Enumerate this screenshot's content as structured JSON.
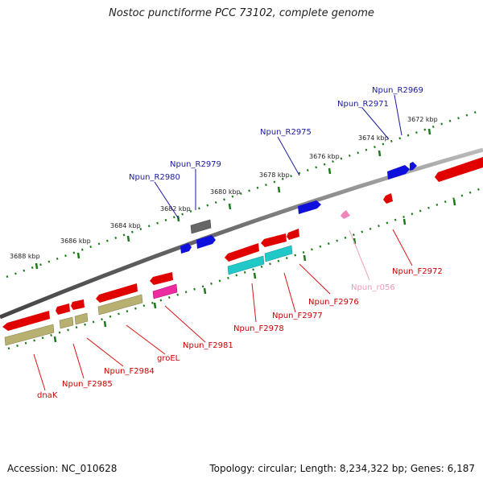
{
  "title": "Nostoc punctiforme PCC 73102, complete genome",
  "footer": {
    "accession": "Accession: NC_010628",
    "topology": "Topology: circular; Length: 8,234,322 bp; Genes: 6,187"
  },
  "colors": {
    "forward_gene": "#1010dd",
    "reverse_gene": "#e00000",
    "ncRNA": "#ee88bb",
    "label_forward": "#1a1aa0",
    "label_reverse": "#cc0000",
    "label_ncRNA": "#ee99bb",
    "cds_olive": "#b8b070",
    "cds_teal": "#20c8c8",
    "cds_magenta": "#ee2aa0",
    "cds_gray": "#666666",
    "scale_green": "#1a7a1a",
    "backbone": "#777777"
  },
  "kbp_ticks": [
    "3688 kbp",
    "3686 kbp",
    "3684 kbp",
    "3682 kbp",
    "3680 kbp",
    "3678 kbp",
    "3676 kbp",
    "3674 kbp",
    "3672 kbp"
  ],
  "forward_labels": [
    "Npun_R2980",
    "Npun_R2979",
    "Npun_R2975",
    "Npun_R2971",
    "Npun_R2969"
  ],
  "reverse_labels": [
    "dnaK",
    "Npun_F2985",
    "Npun_F2984",
    "groEL",
    "Npun_F2981",
    "Npun_F2978",
    "Npun_F2977",
    "Npun_F2976",
    "Npun_F2972"
  ],
  "ncrna_labels": [
    "Npun_r056"
  ]
}
